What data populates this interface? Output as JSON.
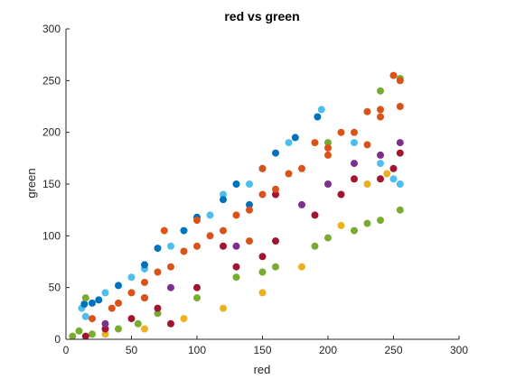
{
  "chart_data": {
    "type": "scatter",
    "title": "red vs green",
    "xlabel": "red",
    "ylabel": "green",
    "xlim": [
      0,
      300
    ],
    "ylim": [
      0,
      300
    ],
    "xticks": [
      "0",
      "50",
      "100",
      "150",
      "200",
      "250",
      "300"
    ],
    "yticks": [
      "0",
      "50",
      "100",
      "150",
      "200",
      "250",
      "300"
    ],
    "grid": false,
    "legend": "none",
    "box": "open",
    "series": [
      {
        "color": "#4DBEEE",
        "points": [
          [
            12,
            30
          ],
          [
            30,
            45
          ],
          [
            50,
            60
          ],
          [
            80,
            90
          ],
          [
            110,
            120
          ],
          [
            140,
            150
          ],
          [
            170,
            190
          ],
          [
            195,
            222
          ],
          [
            220,
            190
          ],
          [
            240,
            170
          ],
          [
            250,
            155
          ],
          [
            255,
            150
          ],
          [
            15,
            22
          ],
          [
            60,
            68
          ],
          [
            120,
            140
          ]
        ]
      },
      {
        "color": "#0072BD",
        "points": [
          [
            14,
            34
          ],
          [
            25,
            38
          ],
          [
            40,
            52
          ],
          [
            60,
            72
          ],
          [
            90,
            105
          ],
          [
            120,
            135
          ],
          [
            150,
            165
          ],
          [
            175,
            195
          ],
          [
            192,
            215
          ],
          [
            20,
            35
          ],
          [
            70,
            88
          ],
          [
            100,
            118
          ],
          [
            130,
            150
          ],
          [
            160,
            180
          ],
          [
            140,
            130
          ]
        ]
      },
      {
        "color": "#77AC30",
        "points": [
          [
            5,
            3
          ],
          [
            10,
            8
          ],
          [
            20,
            5
          ],
          [
            55,
            15
          ],
          [
            70,
            25
          ],
          [
            100,
            40
          ],
          [
            130,
            60
          ],
          [
            160,
            70
          ],
          [
            190,
            90
          ],
          [
            220,
            105
          ],
          [
            240,
            115
          ],
          [
            255,
            125
          ],
          [
            150,
            65
          ],
          [
            200,
            98
          ],
          [
            230,
            112
          ],
          [
            40,
            10
          ],
          [
            15,
            40
          ],
          [
            200,
            190
          ],
          [
            240,
            240
          ],
          [
            255,
            252
          ]
        ]
      },
      {
        "color": "#EDB120",
        "points": [
          [
            30,
            5
          ],
          [
            60,
            10
          ],
          [
            90,
            20
          ],
          [
            120,
            30
          ],
          [
            150,
            45
          ],
          [
            180,
            70
          ],
          [
            210,
            110
          ],
          [
            230,
            150
          ],
          [
            245,
            160
          ]
        ]
      },
      {
        "color": "#A2142F",
        "points": [
          [
            15,
            3
          ],
          [
            30,
            10
          ],
          [
            50,
            20
          ],
          [
            70,
            30
          ],
          [
            100,
            50
          ],
          [
            130,
            70
          ],
          [
            160,
            95
          ],
          [
            190,
            120
          ],
          [
            210,
            140
          ],
          [
            240,
            155
          ],
          [
            255,
            180
          ],
          [
            80,
            15
          ],
          [
            150,
            80
          ],
          [
            220,
            155
          ],
          [
            120,
            90
          ],
          [
            160,
            140
          ],
          [
            60,
            40
          ],
          [
            250,
            165
          ]
        ]
      },
      {
        "color": "#7E2F8E",
        "points": [
          [
            30,
            15
          ],
          [
            80,
            50
          ],
          [
            130,
            90
          ],
          [
            180,
            130
          ],
          [
            220,
            170
          ],
          [
            240,
            178
          ],
          [
            255,
            190
          ],
          [
            200,
            150
          ]
        ]
      },
      {
        "color": "#D95319",
        "points": [
          [
            20,
            20
          ],
          [
            40,
            35
          ],
          [
            60,
            55
          ],
          [
            80,
            70
          ],
          [
            100,
            90
          ],
          [
            120,
            105
          ],
          [
            140,
            125
          ],
          [
            160,
            145
          ],
          [
            180,
            165
          ],
          [
            200,
            185
          ],
          [
            220,
            200
          ],
          [
            240,
            215
          ],
          [
            255,
            225
          ],
          [
            255,
            250
          ],
          [
            250,
            255
          ],
          [
            230,
            220
          ],
          [
            210,
            200
          ],
          [
            190,
            190
          ],
          [
            170,
            160
          ],
          [
            150,
            140
          ],
          [
            130,
            120
          ],
          [
            110,
            100
          ],
          [
            90,
            85
          ],
          [
            70,
            65
          ],
          [
            50,
            45
          ],
          [
            35,
            30
          ],
          [
            75,
            105
          ],
          [
            100,
            115
          ],
          [
            150,
            165
          ],
          [
            200,
            178
          ],
          [
            240,
            222
          ],
          [
            60,
            40
          ],
          [
            140,
            95
          ],
          [
            230,
            188
          ]
        ]
      }
    ]
  }
}
